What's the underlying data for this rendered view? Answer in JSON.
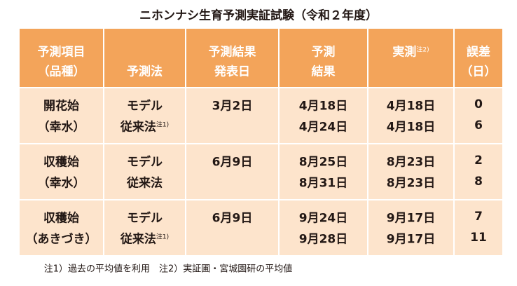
{
  "title": "ニホンナシ生育予測実証試験（令和２年度）",
  "table": {
    "header": [
      {
        "lines": [
          "予測項目",
          "（品種）"
        ]
      },
      {
        "lines": [
          "予測法"
        ]
      },
      {
        "lines": [
          "予測結果",
          "発表日"
        ]
      },
      {
        "lines": [
          "予測",
          "結果"
        ]
      },
      {
        "lines": [
          "実測"
        ],
        "note": "注2)"
      },
      {
        "lines": [
          "誤差",
          "（日）"
        ]
      }
    ],
    "rows": [
      {
        "item": [
          "開花始",
          "（幸水）"
        ],
        "methods": [
          {
            "text": "モデル"
          },
          {
            "text": "従来法",
            "note": "注1)"
          }
        ],
        "date": "3月2日",
        "predicted": [
          "4月18日",
          "4月24日"
        ],
        "actual": [
          "4月18日",
          "4月18日"
        ],
        "error": [
          0,
          6
        ]
      },
      {
        "item": [
          "収穫始",
          "（幸水）"
        ],
        "methods": [
          {
            "text": "モデル"
          },
          {
            "text": "従来法"
          }
        ],
        "date": "6月9日",
        "predicted": [
          "8月25日",
          "8月31日"
        ],
        "actual": [
          "8月23日",
          "8月23日"
        ],
        "error": [
          2,
          8
        ]
      },
      {
        "item": [
          "収穫始",
          "（あきづき）"
        ],
        "methods": [
          {
            "text": "モデル"
          },
          {
            "text": "従来法",
            "note": "注1)"
          }
        ],
        "date": "6月9日",
        "predicted": [
          "9月24日",
          "9月28日"
        ],
        "actual": [
          "9月17日",
          "9月17日"
        ],
        "error": [
          7,
          11
        ]
      }
    ]
  },
  "footnote": "注1）過去の平均値を利用　注2）実証圃・宮城園研の平均値"
}
